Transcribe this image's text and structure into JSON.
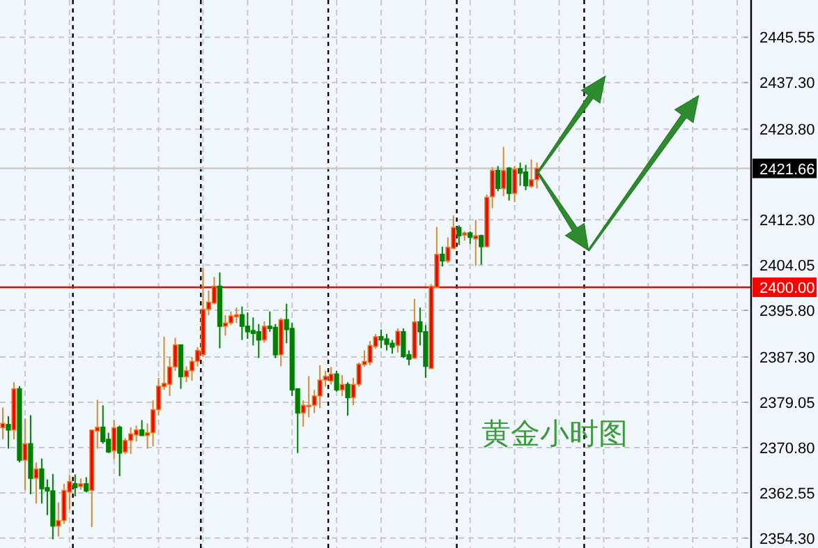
{
  "chart_data": {
    "type": "candlestick",
    "categories": [
      null,
      null,
      null,
      null,
      null,
      null,
      null,
      null,
      null,
      null,
      null,
      null,
      null,
      null,
      null,
      null,
      null,
      null,
      null,
      null,
      null,
      null,
      null,
      null,
      null,
      null,
      null,
      null,
      null,
      null,
      null,
      null,
      null,
      null,
      null,
      null,
      null,
      null,
      null,
      null,
      null,
      null,
      null,
      null,
      null,
      null,
      null,
      null,
      null,
      null,
      null,
      null,
      null,
      null,
      null,
      null,
      null,
      null,
      null,
      null,
      null,
      null,
      null,
      null,
      null,
      null,
      null,
      null,
      null,
      null,
      null,
      null,
      null,
      null,
      null,
      null,
      null,
      null,
      null,
      null,
      null,
      null,
      null,
      null,
      null,
      null,
      null,
      null,
      null,
      null,
      null,
      null,
      null,
      null,
      null,
      null,
      null,
      null,
      null,
      null,
      null,
      null,
      null,
      null,
      null,
      null,
      null,
      null,
      null,
      null,
      null,
      null,
      null,
      null,
      null,
      null,
      null,
      null,
      null,
      null,
      null,
      null,
      null,
      null,
      null,
      null,
      null,
      null,
      null,
      null,
      null,
      null,
      null,
      null,
      null
    ],
    "ohlc": [
      [
        2374.4,
        2378.1,
        2372.3,
        2375.2
      ],
      [
        2375.0,
        2376.5,
        2370.6,
        2374.0
      ],
      [
        2374.0,
        2382.7,
        2372.3,
        2381.5
      ],
      [
        2381.5,
        2382.0,
        2368.1,
        2368.5
      ],
      [
        2368.5,
        2376.1,
        2363.1,
        2371.5
      ],
      [
        2371.5,
        2376.7,
        2362.3,
        2365.2
      ],
      [
        2365.2,
        2368.1,
        2360.6,
        2366.9
      ],
      [
        2366.9,
        2368.8,
        2360.6,
        2363.3
      ],
      [
        2363.5,
        2365.0,
        2358.5,
        2362.9
      ],
      [
        2362.9,
        2366.0,
        2354.1,
        2356.5
      ],
      [
        2356.5,
        2360.8,
        2354.6,
        2357.5
      ],
      [
        2357.5,
        2364.2,
        2356.9,
        2363.0
      ],
      [
        2362.7,
        2365.8,
        2359.6,
        2364.6
      ],
      [
        2364.2,
        2365.9,
        2361.9,
        2363.5
      ],
      [
        2363.7,
        2365.2,
        2363.1,
        2364.2
      ],
      [
        2364.2,
        2365.4,
        2362.6,
        2362.9
      ],
      [
        2363.0,
        2374.1,
        2356.3,
        2374.0
      ],
      [
        2373.8,
        2379.5,
        2370.6,
        2374.5
      ],
      [
        2374.5,
        2378.5,
        2371.5,
        2371.9
      ],
      [
        2372.3,
        2373.5,
        2369.8,
        2370.0
      ],
      [
        2370.2,
        2375.8,
        2368.7,
        2374.4
      ],
      [
        2374.5,
        2374.8,
        2365.6,
        2369.8
      ],
      [
        2370.0,
        2372.5,
        2369.6,
        2372.1
      ],
      [
        2372.1,
        2374.5,
        2369.6,
        2373.3
      ],
      [
        2373.1,
        2374.8,
        2371.9,
        2374.0
      ],
      [
        2374.0,
        2375.8,
        2372.9,
        2373.0
      ],
      [
        2373.0,
        2375.2,
        2370.6,
        2373.5
      ],
      [
        2373.5,
        2379.4,
        2371.0,
        2377.7
      ],
      [
        2377.7,
        2383.5,
        2376.7,
        2382.0
      ],
      [
        2381.9,
        2391.0,
        2381.3,
        2382.5
      ],
      [
        2382.3,
        2387.3,
        2380.2,
        2385.5
      ],
      [
        2385.5,
        2390.8,
        2384.8,
        2389.5
      ],
      [
        2389.5,
        2389.5,
        2381.5,
        2383.7
      ],
      [
        2383.7,
        2385.6,
        2382.7,
        2384.8
      ],
      [
        2384.8,
        2387.3,
        2383.0,
        2386.5
      ],
      [
        2386.5,
        2389.1,
        2385.6,
        2388.5
      ],
      [
        2387.7,
        2403.5,
        2387.3,
        2396.0
      ],
      [
        2396.0,
        2399.4,
        2394.9,
        2397.3
      ],
      [
        2397.1,
        2401.9,
        2396.9,
        2400.2
      ],
      [
        2400.2,
        2402.7,
        2388.9,
        2392.9
      ],
      [
        2392.9,
        2394.9,
        2391.2,
        2393.5
      ],
      [
        2393.5,
        2395.6,
        2393.1,
        2394.8
      ],
      [
        2394.6,
        2396.3,
        2393.5,
        2395.0
      ],
      [
        2395.0,
        2396.5,
        2390.4,
        2392.9
      ],
      [
        2392.9,
        2395.4,
        2390.6,
        2391.9
      ],
      [
        2392.1,
        2394.5,
        2389.4,
        2391.6
      ],
      [
        2391.9,
        2393.3,
        2387.1,
        2390.4
      ],
      [
        2390.4,
        2393.8,
        2389.9,
        2392.9
      ],
      [
        2392.9,
        2395.6,
        2391.9,
        2392.5
      ],
      [
        2392.7,
        2393.3,
        2387.1,
        2387.7
      ],
      [
        2387.7,
        2394.4,
        2385.6,
        2394.1
      ],
      [
        2394.1,
        2397.0,
        2389.8,
        2392.3
      ],
      [
        2392.5,
        2393.5,
        2380.2,
        2381.3
      ],
      [
        2381.5,
        2381.5,
        2369.8,
        2377.1
      ],
      [
        2377.1,
        2379.4,
        2374.6,
        2378.5
      ],
      [
        2378.4,
        2383.8,
        2376.3,
        2378.5
      ],
      [
        2378.5,
        2381.3,
        2377.1,
        2380.2
      ],
      [
        2380.2,
        2385.8,
        2378.0,
        2383.1
      ],
      [
        2383.1,
        2384.8,
        2381.9,
        2383.8
      ],
      [
        2382.9,
        2385.5,
        2382.3,
        2384.2
      ],
      [
        2384.2,
        2384.8,
        2381.0,
        2381.3
      ],
      [
        2381.3,
        2384.0,
        2380.2,
        2382.3
      ],
      [
        2382.3,
        2382.7,
        2376.6,
        2379.9
      ],
      [
        2379.9,
        2383.5,
        2378.5,
        2382.3
      ],
      [
        2382.3,
        2386.3,
        2381.9,
        2386.0
      ],
      [
        2385.9,
        2388.5,
        2385.5,
        2386.5
      ],
      [
        2386.3,
        2390.2,
        2385.8,
        2389.4
      ],
      [
        2389.2,
        2391.5,
        2388.8,
        2391.0
      ],
      [
        2391.0,
        2392.3,
        2388.9,
        2390.4
      ],
      [
        2390.6,
        2391.5,
        2388.5,
        2389.6
      ],
      [
        2389.8,
        2390.4,
        2387.9,
        2389.1
      ],
      [
        2389.4,
        2392.5,
        2388.1,
        2392.0
      ],
      [
        2391.9,
        2392.5,
        2387.1,
        2387.4
      ],
      [
        2387.7,
        2388.5,
        2385.8,
        2386.9
      ],
      [
        2387.1,
        2397.9,
        2386.9,
        2393.7
      ],
      [
        2393.7,
        2396.3,
        2389.4,
        2391.9
      ],
      [
        2391.9,
        2393.1,
        2383.5,
        2385.6
      ],
      [
        2385.2,
        2400.6,
        2385.2,
        2400.2
      ],
      [
        2400.0,
        2411.0,
        2399.8,
        2406.0
      ],
      [
        2406.0,
        2407.4,
        2403.8,
        2404.8
      ],
      [
        2404.8,
        2409.1,
        2404.4,
        2407.3
      ],
      [
        2407.1,
        2413.1,
        2406.9,
        2410.9
      ],
      [
        2410.9,
        2411.3,
        2407.7,
        2409.4
      ],
      [
        2409.5,
        2410.2,
        2408.5,
        2409.9
      ],
      [
        2409.9,
        2410.2,
        2407.9,
        2409.1
      ],
      [
        2408.8,
        2412.3,
        2403.9,
        2409.4
      ],
      [
        2409.4,
        2409.6,
        2404.1,
        2407.4
      ],
      [
        2407.4,
        2416.9,
        2407.3,
        2416.4
      ],
      [
        2416.5,
        2421.9,
        2414.4,
        2421.3
      ],
      [
        2421.3,
        2422.1,
        2417.5,
        2418.0
      ],
      [
        2418.0,
        2425.6,
        2416.6,
        2421.3
      ],
      [
        2421.7,
        2421.9,
        2415.8,
        2417.1
      ],
      [
        2417.1,
        2422.1,
        2415.5,
        2421.5
      ],
      [
        2421.6,
        2422.7,
        2418.5,
        2420.8
      ],
      [
        2421.0,
        2422.3,
        2417.7,
        2418.5
      ],
      [
        2418.4,
        2423.3,
        2418.1,
        2419.6
      ],
      [
        2419.6,
        2422.7,
        2418.0,
        2421.7
      ],
      null,
      null,
      null,
      null,
      null,
      null,
      null,
      null,
      null,
      null,
      null,
      null,
      null,
      null,
      null,
      null,
      null,
      null,
      null,
      null,
      null,
      null,
      null,
      null,
      null,
      null,
      null,
      null,
      null,
      null,
      null,
      null,
      null,
      null,
      null,
      null,
      null,
      null
    ],
    "ylim": [
      2352.5,
      2452.34
    ],
    "yticks": [
      {
        "value": 2354.3,
        "label": "2354.30"
      },
      {
        "value": 2362.55,
        "label": "2362.55"
      },
      {
        "value": 2370.8,
        "label": "2370.80"
      },
      {
        "value": 2379.05,
        "label": "2379.05"
      },
      {
        "value": 2387.3,
        "label": "2387.30"
      },
      {
        "value": 2395.8,
        "label": "2395.80"
      },
      {
        "value": 2404.05,
        "label": "2404.05"
      },
      {
        "value": 2412.3,
        "label": "2412.30"
      },
      {
        "value": 2428.8,
        "label": "2428.80"
      },
      {
        "value": 2437.3,
        "label": "2437.30"
      },
      {
        "value": 2445.55,
        "label": "2445.55"
      }
    ],
    "tick_labels": "y",
    "grid": true,
    "ref_lines": [
      {
        "axis": "y",
        "value": 2400.0,
        "label": "2400.00",
        "color": "#ff0000"
      },
      {
        "axis": "y",
        "value": 2421.66,
        "label": "2421.66",
        "color": "#c8c8c8"
      }
    ],
    "annotations": [
      "黄金小时图"
    ]
  }
}
